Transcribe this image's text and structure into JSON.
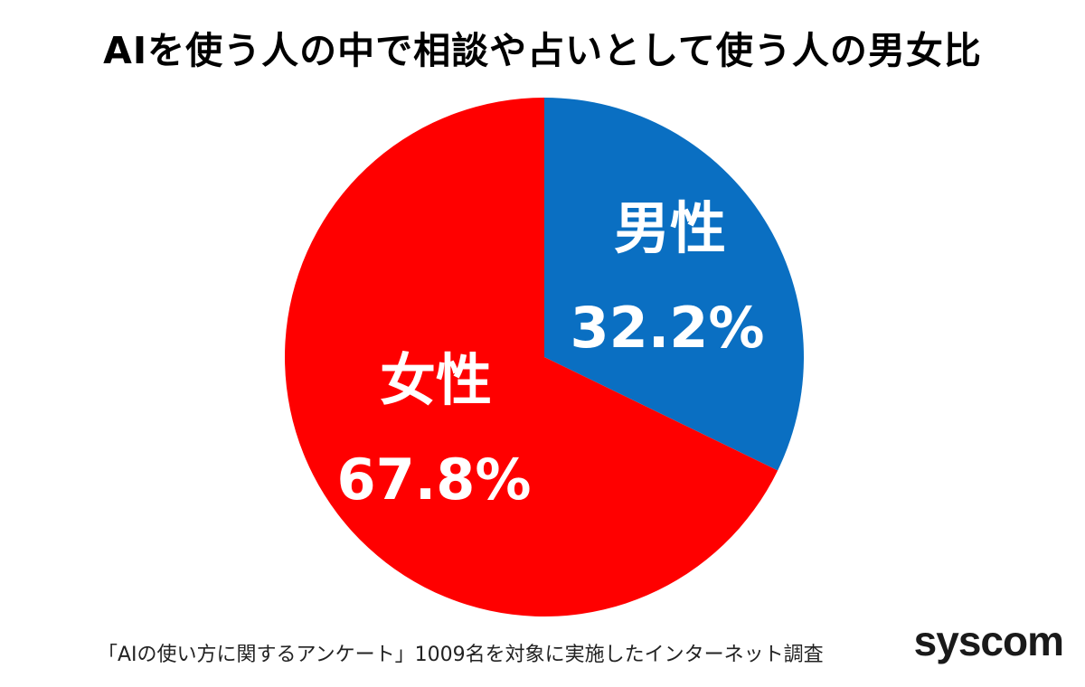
{
  "chart_data": {
    "type": "pie",
    "title": "AIを使う人の中で相談や占いとして使う人の男女比",
    "series": [
      {
        "categories": [
          "男性",
          "女性"
        ],
        "values": [
          32.2,
          67.8
        ],
        "value_labels": [
          "32.2%",
          "67.8%"
        ],
        "colors": [
          "#0A6FC2",
          "#FF0000"
        ]
      }
    ],
    "start_angle": "12 o'clock",
    "direction": "clockwise",
    "legend": "none"
  },
  "footnote": "「AIの使い方に関するアンケート」1009名を対象に実施したインターネット調査",
  "brand": "syscom"
}
